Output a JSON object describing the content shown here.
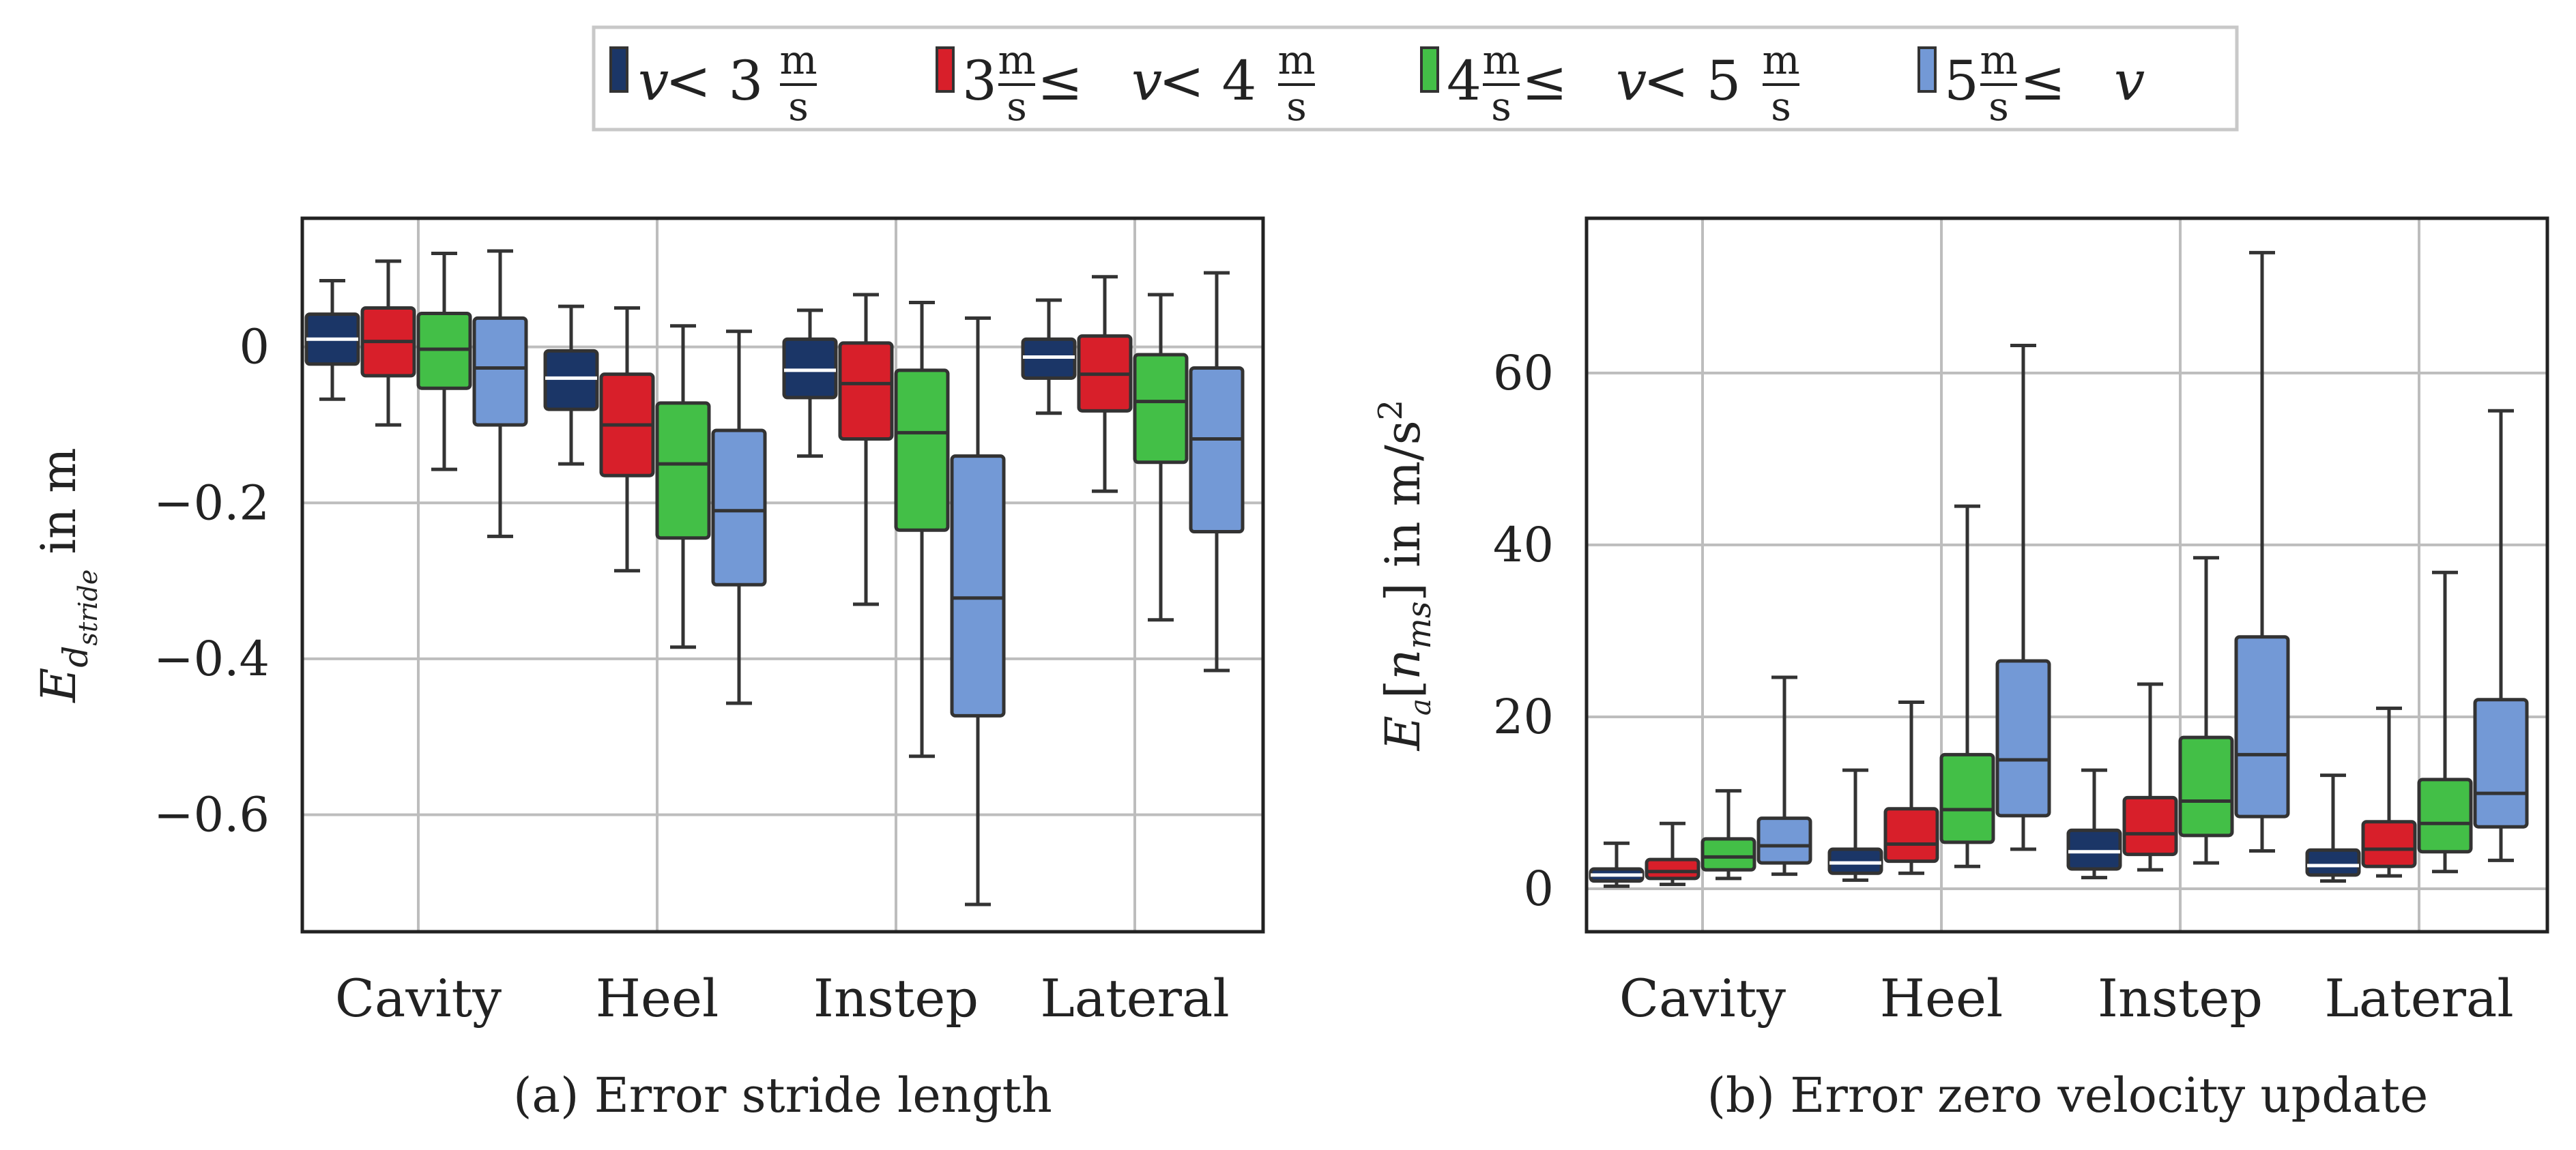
{
  "legend": {
    "items": [
      {
        "color": "#1b3667",
        "expr": {
          "pre": "",
          "v": "v",
          "rel": " < 3",
          "frac_num": "m",
          "frac_den": "s",
          "post": ""
        }
      },
      {
        "color": "#d81f2a",
        "expr": {
          "pre": "3",
          "frac1_num": "m",
          "frac1_den": "s",
          "mid_rel": " ≤ ",
          "v": "v",
          "rel": " < 4",
          "frac_num": "m",
          "frac_den": "s"
        }
      },
      {
        "color": "#43bf47",
        "expr": {
          "pre": "4",
          "frac1_num": "m",
          "frac1_den": "s",
          "mid_rel": " ≤ ",
          "v": "v",
          "rel": " < 5",
          "frac_num": "m",
          "frac_den": "s"
        }
      },
      {
        "color": "#7399d6",
        "expr": {
          "pre": "5",
          "frac1_num": "m",
          "frac1_den": "s",
          "mid_rel": " ≤ ",
          "v": "v"
        }
      }
    ]
  },
  "chart_data": [
    {
      "type": "box",
      "caption": "(a) Error stride length",
      "ylabel": {
        "E": "E",
        "sub_d": "d",
        "sub_sub": "stride",
        "unit": " in m"
      },
      "categories": [
        "Cavity",
        "Heel",
        "Instep",
        "Lateral"
      ],
      "ylim": [
        -0.75,
        0.165
      ],
      "yticks": [
        0,
        -0.2,
        -0.4,
        -0.6
      ],
      "ytick_labels": [
        "0",
        "−0.2",
        "−0.4",
        "−0.6"
      ],
      "grid": true,
      "series": [
        {
          "name": "v < 3 m/s",
          "color": "#1b3667",
          "boxes": [
            {
              "whislo": -0.067,
              "q1": -0.022,
              "med": 0.01,
              "q3": 0.042,
              "whishi": 0.085
            },
            {
              "whislo": -0.15,
              "q1": -0.08,
              "med": -0.04,
              "q3": -0.005,
              "whishi": 0.052
            },
            {
              "whislo": -0.14,
              "q1": -0.065,
              "med": -0.03,
              "q3": 0.01,
              "whishi": 0.047
            },
            {
              "whislo": -0.085,
              "q1": -0.04,
              "med": -0.013,
              "q3": 0.01,
              "whishi": 0.06
            }
          ]
        },
        {
          "name": "3 m/s ≤ v < 4 m/s",
          "color": "#d81f2a",
          "boxes": [
            {
              "whislo": -0.1,
              "q1": -0.037,
              "med": 0.007,
              "q3": 0.05,
              "whishi": 0.11
            },
            {
              "whislo": -0.287,
              "q1": -0.165,
              "med": -0.1,
              "q3": -0.035,
              "whishi": 0.05
            },
            {
              "whislo": -0.33,
              "q1": -0.118,
              "med": -0.047,
              "q3": 0.005,
              "whishi": 0.067
            },
            {
              "whislo": -0.185,
              "q1": -0.082,
              "med": -0.035,
              "q3": 0.014,
              "whishi": 0.09
            }
          ]
        },
        {
          "name": "4 m/s ≤ v < 5 m/s",
          "color": "#43bf47",
          "boxes": [
            {
              "whislo": -0.157,
              "q1": -0.053,
              "med": -0.003,
              "q3": 0.043,
              "whishi": 0.12
            },
            {
              "whislo": -0.385,
              "q1": -0.245,
              "med": -0.15,
              "q3": -0.072,
              "whishi": 0.027
            },
            {
              "whislo": -0.525,
              "q1": -0.235,
              "med": -0.11,
              "q3": -0.03,
              "whishi": 0.057
            },
            {
              "whislo": -0.35,
              "q1": -0.148,
              "med": -0.07,
              "q3": -0.01,
              "whishi": 0.067
            }
          ]
        },
        {
          "name": "5 m/s ≤ v",
          "color": "#7399d6",
          "boxes": [
            {
              "whislo": -0.243,
              "q1": -0.1,
              "med": -0.027,
              "q3": 0.037,
              "whishi": 0.123
            },
            {
              "whislo": -0.457,
              "q1": -0.305,
              "med": -0.21,
              "q3": -0.107,
              "whishi": 0.02
            },
            {
              "whislo": -0.715,
              "q1": -0.473,
              "med": -0.322,
              "q3": -0.14,
              "whishi": 0.037
            },
            {
              "whislo": -0.415,
              "q1": -0.237,
              "med": -0.118,
              "q3": -0.027,
              "whishi": 0.095
            }
          ]
        }
      ]
    },
    {
      "type": "box",
      "caption": "(b) Error zero velocity update",
      "ylabel": {
        "E": "E",
        "sub_vec": "a",
        "bracket_open": "[",
        "n": "n",
        "n_sub": "ms",
        "bracket_close": "]",
        "unit": " in m/s",
        "sup": "2"
      },
      "categories": [
        "Cavity",
        "Heel",
        "Instep",
        "Lateral"
      ],
      "ylim": [
        -5,
        78
      ],
      "yticks": [
        0,
        20,
        40,
        60
      ],
      "ytick_labels": [
        "0",
        "20",
        "40",
        "60"
      ],
      "grid": true,
      "series": [
        {
          "name": "v < 3 m/s",
          "color": "#1b3667",
          "boxes": [
            {
              "whislo": 0.3,
              "q1": 0.9,
              "med": 1.6,
              "q3": 2.3,
              "whishi": 5.3
            },
            {
              "whislo": 1.0,
              "q1": 1.8,
              "med": 3.0,
              "q3": 4.6,
              "whishi": 13.8
            },
            {
              "whislo": 1.3,
              "q1": 2.3,
              "med": 4.3,
              "q3": 6.8,
              "whishi": 13.8
            },
            {
              "whislo": 0.9,
              "q1": 1.6,
              "med": 2.7,
              "q3": 4.5,
              "whishi": 13.2
            }
          ]
        },
        {
          "name": "3 m/s ≤ v < 4 m/s",
          "color": "#d81f2a",
          "boxes": [
            {
              "whislo": 0.5,
              "q1": 1.2,
              "med": 2.0,
              "q3": 3.4,
              "whishi": 7.6
            },
            {
              "whislo": 1.8,
              "q1": 3.2,
              "med": 5.2,
              "q3": 9.3,
              "whishi": 21.7
            },
            {
              "whislo": 2.2,
              "q1": 4.0,
              "med": 6.4,
              "q3": 10.6,
              "whishi": 23.8
            },
            {
              "whislo": 1.5,
              "q1": 2.6,
              "med": 4.6,
              "q3": 7.8,
              "whishi": 21.0
            }
          ]
        },
        {
          "name": "4 m/s ≤ v < 5 m/s",
          "color": "#43bf47",
          "boxes": [
            {
              "whislo": 1.2,
              "q1": 2.2,
              "med": 3.7,
              "q3": 5.8,
              "whishi": 11.4
            },
            {
              "whislo": 2.6,
              "q1": 5.4,
              "med": 9.2,
              "q3": 15.6,
              "whishi": 44.5
            },
            {
              "whislo": 3.0,
              "q1": 6.2,
              "med": 10.2,
              "q3": 17.6,
              "whishi": 38.5
            },
            {
              "whislo": 2.0,
              "q1": 4.3,
              "med": 7.6,
              "q3": 12.7,
              "whishi": 36.8
            }
          ]
        },
        {
          "name": "5 m/s ≤ v",
          "color": "#7399d6",
          "boxes": [
            {
              "whislo": 1.7,
              "q1": 3.0,
              "med": 5.0,
              "q3": 8.2,
              "whishi": 24.6
            },
            {
              "whislo": 4.6,
              "q1": 8.5,
              "med": 15.0,
              "q3": 26.5,
              "whishi": 63.2
            },
            {
              "whislo": 4.4,
              "q1": 8.4,
              "med": 15.6,
              "q3": 29.3,
              "whishi": 74.0
            },
            {
              "whislo": 3.3,
              "q1": 7.2,
              "med": 11.1,
              "q3": 22.0,
              "whishi": 55.6
            }
          ]
        }
      ]
    }
  ]
}
